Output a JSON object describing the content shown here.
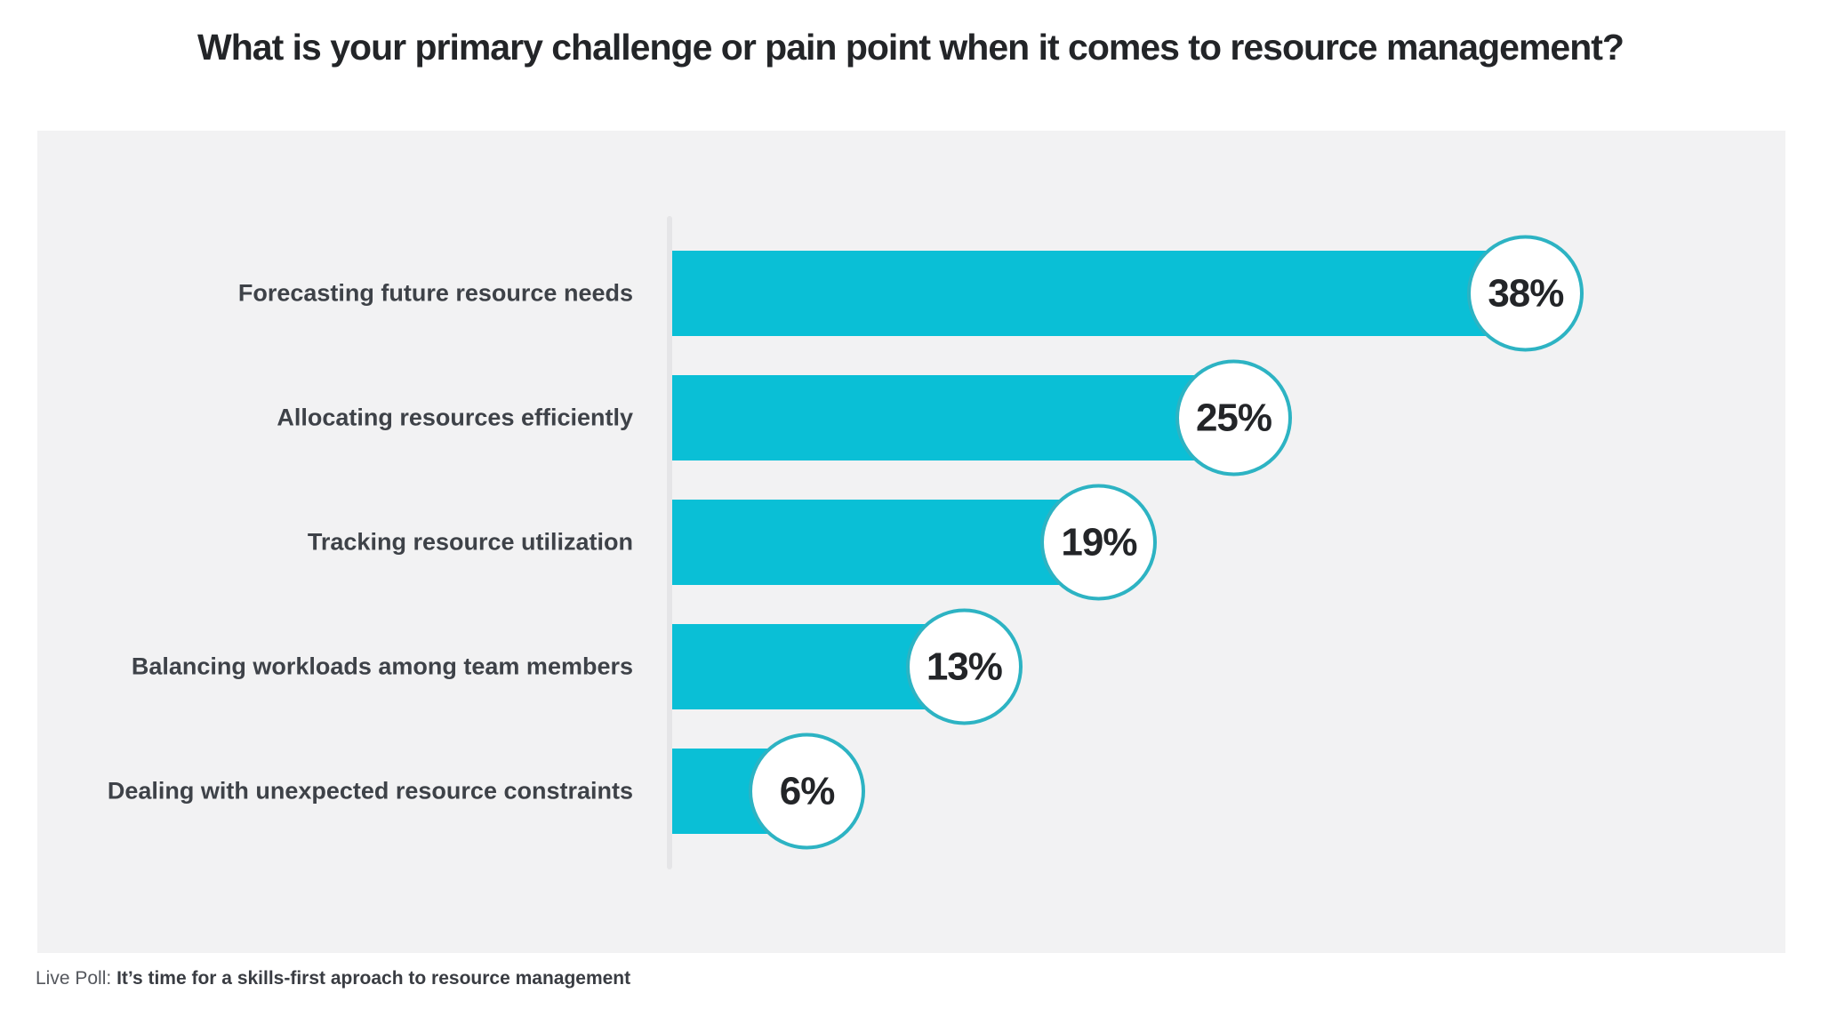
{
  "page": {
    "title": "What is your primary challenge or pain point when it comes to resource management?"
  },
  "footer": {
    "prefix": "Live Poll:",
    "poll_title": "It’s time for a skills-first aproach to resource management"
  },
  "colors": {
    "bar": "#0abfd6",
    "badge_border": "#2db3c3",
    "badge_bg": "#ffffff",
    "panel_bg": "#f2f2f3",
    "title_text": "#232528",
    "label_text": "#3e4248",
    "axis_line": "#e5e5e7",
    "footer_prefix": "#54575d",
    "footer_bold": "#393c42"
  },
  "chart_data": {
    "type": "bar",
    "orientation": "horizontal",
    "title": "What is your primary challenge or pain point when it comes to resource management?",
    "categories": [
      "Forecasting future resource needs",
      "Allocating resources efficiently",
      "Tracking resource utilization",
      "Balancing workloads among team members",
      "Dealing with unexpected resource constraints"
    ],
    "values": [
      38,
      25,
      19,
      13,
      6
    ],
    "unit": "%",
    "value_labels": [
      "38%",
      "25%",
      "19%",
      "13%",
      "6%"
    ],
    "xlim": [
      0,
      40
    ],
    "grid": false,
    "legend": false,
    "bar_color": "#0abfd6",
    "value_badge_style": "white circle with teal ring at bar end"
  }
}
